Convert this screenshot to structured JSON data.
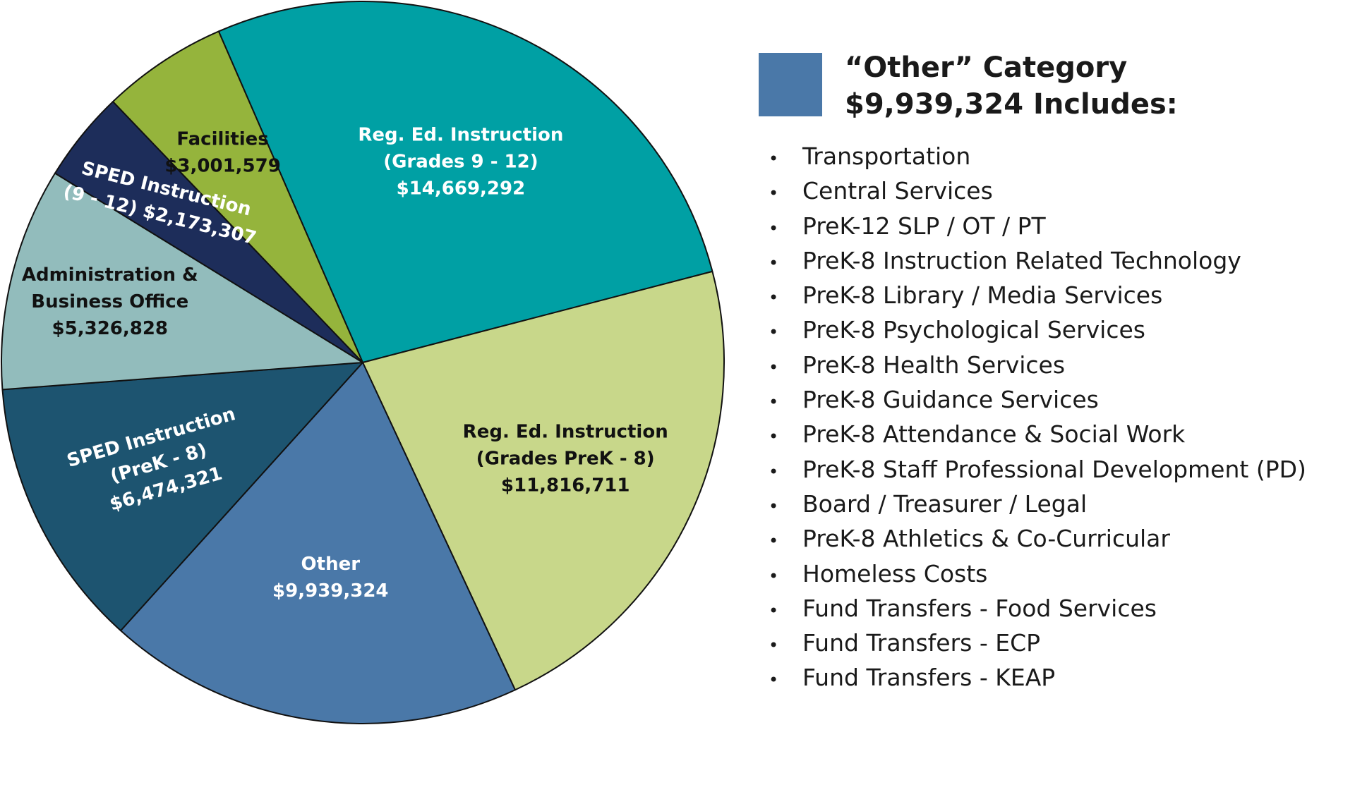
{
  "chart_data": {
    "type": "pie",
    "slices": [
      {
        "lines": [
          "Reg. Ed. Instruction",
          "(Grades 9 - 12)",
          "$14,669,292"
        ],
        "value": 14669292,
        "color": "#00a0a4",
        "text_color": "#ffffff"
      },
      {
        "lines": [
          "Reg. Ed. Instruction",
          "(Grades PreK - 8)",
          "$11,816,711"
        ],
        "value": 11816711,
        "color": "#c8d78a",
        "text_color": "#111111"
      },
      {
        "lines": [
          "Other",
          "$9,939,324"
        ],
        "value": 9939324,
        "color": "#4a78a8",
        "text_color": "#ffffff"
      },
      {
        "lines": [
          "SPED Instruction",
          "(PreK - 8)",
          "$6,474,321"
        ],
        "value": 6474321,
        "color": "#1d5470",
        "text_color": "#ffffff"
      },
      {
        "lines": [
          "Administration &",
          "Business Office",
          "$5,326,828"
        ],
        "value": 5326828,
        "color": "#92bcbc",
        "text_color": "#111111"
      },
      {
        "lines": [
          "SPED Instruction",
          "(9 - 12) $2,173,307"
        ],
        "value": 2173307,
        "color": "#1d2d5a",
        "text_color": "#ffffff"
      },
      {
        "lines": [
          "Facilities",
          "$3,001,579"
        ],
        "value": 3001579,
        "color": "#95b43c",
        "text_color": "#111111"
      }
    ]
  },
  "other_legend": {
    "swatch_color": "#4a78a8",
    "heading_line1": "“Other” Category",
    "heading_line2": "$9,939,324 Includes:",
    "bullet": "•",
    "items": [
      "Transportation",
      "Central Services",
      "PreK-12 SLP / OT / PT",
      "PreK-8 Instruction Related Technology",
      "PreK-8 Library / Media Services",
      "PreK-8 Psychological Services",
      "PreK-8 Health Services",
      "PreK-8 Guidance Services",
      "PreK-8 Attendance & Social Work",
      "PreK-8 Staff Professional Development (PD)",
      "Board / Treasurer / Legal",
      "PreK-8 Athletics & Co-Curricular",
      "Homeless Costs",
      "Fund Transfers - Food Services",
      "Fund Transfers - ECP",
      "Fund Transfers - KEAP"
    ]
  }
}
